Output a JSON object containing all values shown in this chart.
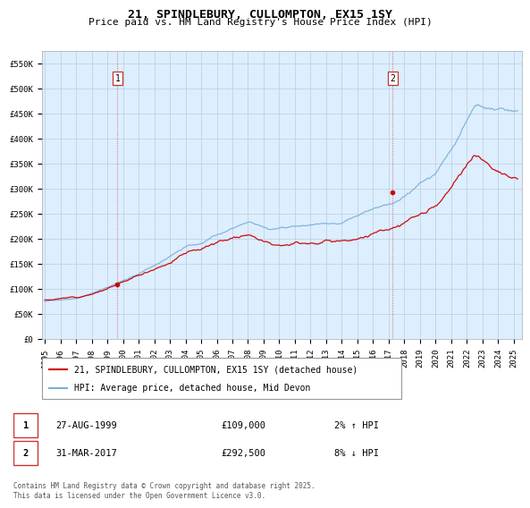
{
  "title": "21, SPINDLEBURY, CULLOMPTON, EX15 1SY",
  "subtitle": "Price paid vs. HM Land Registry's House Price Index (HPI)",
  "ylabel_ticks": [
    "£0",
    "£50K",
    "£100K",
    "£150K",
    "£200K",
    "£250K",
    "£300K",
    "£350K",
    "£400K",
    "£450K",
    "£500K",
    "£550K"
  ],
  "ytick_vals": [
    0,
    50000,
    100000,
    150000,
    200000,
    250000,
    300000,
    350000,
    400000,
    450000,
    500000,
    550000
  ],
  "ylim": [
    0,
    575000
  ],
  "xlim_start": 1994.8,
  "xlim_end": 2025.5,
  "xticks": [
    1995,
    1996,
    1997,
    1998,
    1999,
    2000,
    2001,
    2002,
    2003,
    2004,
    2005,
    2006,
    2007,
    2008,
    2009,
    2010,
    2011,
    2012,
    2013,
    2014,
    2015,
    2016,
    2017,
    2018,
    2019,
    2020,
    2021,
    2022,
    2023,
    2024,
    2025
  ],
  "sale1_x": 1999.65,
  "sale1_y": 109000,
  "sale1_label": "1",
  "sale2_x": 2017.25,
  "sale2_y": 292500,
  "sale2_label": "2",
  "line_color_red": "#cc0000",
  "line_color_blue": "#7ab0d4",
  "dot_color_red": "#cc0000",
  "background_color": "#ffffff",
  "plot_bg_color": "#ddeeff",
  "grid_color": "#bbccdd",
  "legend_line1": "21, SPINDLEBURY, CULLOMPTON, EX15 1SY (detached house)",
  "legend_line2": "HPI: Average price, detached house, Mid Devon",
  "table_row1_num": "1",
  "table_row1_date": "27-AUG-1999",
  "table_row1_price": "£109,000",
  "table_row1_hpi": "2% ↑ HPI",
  "table_row2_num": "2",
  "table_row2_date": "31-MAR-2017",
  "table_row2_price": "£292,500",
  "table_row2_hpi": "8% ↓ HPI",
  "footnote": "Contains HM Land Registry data © Crown copyright and database right 2025.\nThis data is licensed under the Open Government Licence v3.0.",
  "title_fontsize": 9.5,
  "subtitle_fontsize": 8,
  "tick_fontsize": 6.5,
  "legend_fontsize": 7,
  "table_fontsize": 7.5,
  "footnote_fontsize": 5.5
}
